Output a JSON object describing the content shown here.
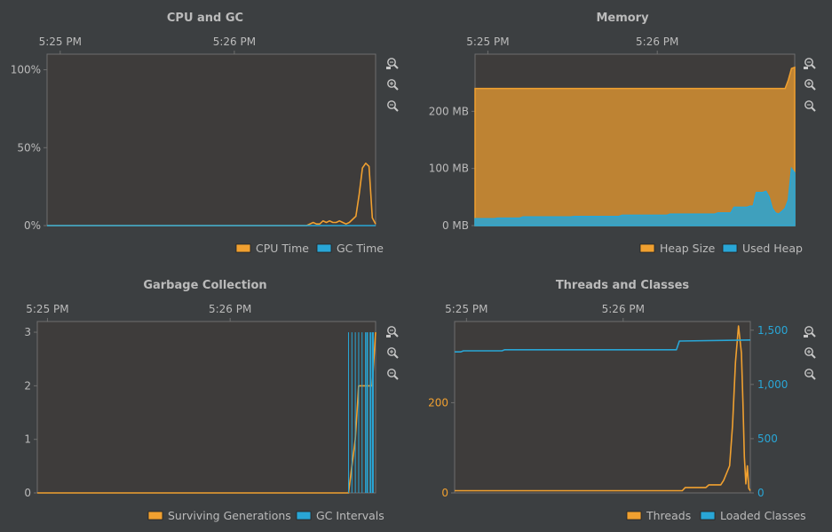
{
  "colors": {
    "background": "#3c3f41",
    "plot_background": "#3e3c3b",
    "orange": "#f0a030",
    "blue": "#29a6d6",
    "text": "#bbbbbb",
    "axis": "#6e6e6e"
  },
  "toolbar_icons": [
    "zoom-fit-icon",
    "zoom-in-icon",
    "zoom-out-icon"
  ],
  "chart_data": [
    {
      "id": "cpu",
      "type": "line",
      "title": "CPU and GC",
      "x_tick_labels": [
        "5:25 PM",
        "5:26 PM"
      ],
      "x_tick_positions": [
        0.04,
        0.57
      ],
      "x_domain": [
        0,
        100
      ],
      "ylim": [
        0,
        110
      ],
      "y_ticks": [
        0,
        50,
        100
      ],
      "y_tick_labels": [
        "0%",
        "50%",
        "100%"
      ],
      "legend": [
        "CPU Time",
        "GC Time"
      ],
      "series": [
        {
          "name": "CPU Time",
          "color": "#f0a030",
          "x": [
            0,
            30,
            60,
            78,
            79,
            80,
            81,
            82,
            83,
            84,
            85,
            86,
            87,
            88,
            89,
            90,
            91,
            92,
            93,
            94,
            95,
            96,
            97,
            98,
            99,
            100
          ],
          "values": [
            0,
            0,
            0,
            0,
            0,
            1,
            2,
            1,
            1,
            3,
            2,
            3,
            2,
            2,
            3,
            2,
            1,
            2,
            4,
            6,
            20,
            37,
            40,
            38,
            5,
            1
          ]
        },
        {
          "name": "GC Time",
          "color": "#29a6d6",
          "x": [
            0,
            100
          ],
          "values": [
            0,
            0
          ]
        }
      ]
    },
    {
      "id": "memory",
      "type": "area",
      "title": "Memory",
      "x_tick_labels": [
        "5:25 PM",
        "5:26 PM"
      ],
      "x_tick_positions": [
        0.04,
        0.57
      ],
      "x_domain": [
        0,
        100
      ],
      "ylim": [
        0,
        300
      ],
      "y_ticks": [
        0,
        100,
        200
      ],
      "y_tick_labels": [
        "0 MB",
        "100 MB",
        "200 MB"
      ],
      "legend": [
        "Heap Size",
        "Used Heap"
      ],
      "series": [
        {
          "name": "Heap Size",
          "color": "#f0a030",
          "x": [
            0,
            96,
            97,
            98,
            99,
            100
          ],
          "values": [
            240,
            240,
            240,
            255,
            275,
            277
          ]
        },
        {
          "name": "Used Heap",
          "color": "#29a6d6",
          "x": [
            0,
            6,
            7,
            14,
            15,
            30,
            31,
            45,
            46,
            60,
            61,
            75,
            76,
            80,
            81,
            85,
            86,
            87,
            88,
            90,
            91,
            92,
            93,
            94,
            95,
            96,
            97,
            98,
            99,
            100
          ],
          "values": [
            12,
            12,
            13,
            13,
            15,
            15,
            16,
            16,
            18,
            18,
            20,
            20,
            22,
            22,
            32,
            32,
            34,
            34,
            58,
            58,
            60,
            50,
            30,
            22,
            20,
            25,
            30,
            45,
            100,
            92
          ]
        }
      ]
    },
    {
      "id": "gc",
      "type": "line",
      "title": "Garbage Collection",
      "x_tick_labels": [
        "5:25 PM",
        "5:26 PM"
      ],
      "x_tick_positions": [
        0.03,
        0.57
      ],
      "x_domain": [
        0,
        100
      ],
      "ylim": [
        0,
        3.2
      ],
      "y_ticks": [
        0,
        1,
        2,
        3
      ],
      "y_tick_labels": [
        "0",
        "1",
        "2",
        "3"
      ],
      "legend": [
        "Surviving Generations",
        "GC Intervals"
      ],
      "series": [
        {
          "name": "Surviving Generations",
          "color": "#f0a030",
          "x": [
            0,
            92,
            94,
            95,
            98,
            99,
            100
          ],
          "values": [
            0,
            0,
            1,
            2,
            2,
            2,
            3
          ]
        },
        {
          "name": "GC Intervals",
          "color": "#29a6d6",
          "x": [
            92,
            93,
            94,
            95,
            96,
            97,
            97.5,
            98.5,
            99.2
          ],
          "values": [
            3,
            3,
            3,
            3,
            3,
            3,
            3,
            3,
            3
          ]
        }
      ]
    },
    {
      "id": "threads",
      "type": "line",
      "title": "Threads and Classes",
      "x_tick_labels": [
        "5:25 PM",
        "5:26 PM"
      ],
      "x_tick_positions": [
        0.04,
        0.57
      ],
      "x_domain": [
        0,
        100
      ],
      "ylim": [
        0,
        380
      ],
      "y_ticks": [
        0,
        200
      ],
      "y_tick_labels": [
        "0",
        "200"
      ],
      "y2lim": [
        0,
        1580
      ],
      "y2_ticks": [
        0,
        500,
        1000,
        1500
      ],
      "y2_tick_labels": [
        "0",
        "500",
        "1,000",
        "1,500"
      ],
      "legend": [
        "Threads",
        "Loaded Classes"
      ],
      "series": [
        {
          "name": "Threads",
          "color": "#f0a030",
          "axis": "left",
          "x": [
            0,
            77,
            78,
            85,
            86,
            90,
            91,
            93,
            94,
            95,
            96,
            97,
            97.5,
            98,
            98.5,
            99,
            99.5,
            100
          ],
          "values": [
            5,
            5,
            12,
            12,
            18,
            18,
            28,
            60,
            150,
            290,
            370,
            310,
            200,
            80,
            20,
            60,
            10,
            5
          ]
        },
        {
          "name": "Loaded Classes",
          "color": "#29a6d6",
          "axis": "right",
          "x": [
            0,
            2,
            3,
            16,
            17,
            75,
            76,
            100
          ],
          "values": [
            1300,
            1300,
            1310,
            1310,
            1320,
            1320,
            1400,
            1410
          ]
        }
      ]
    }
  ]
}
